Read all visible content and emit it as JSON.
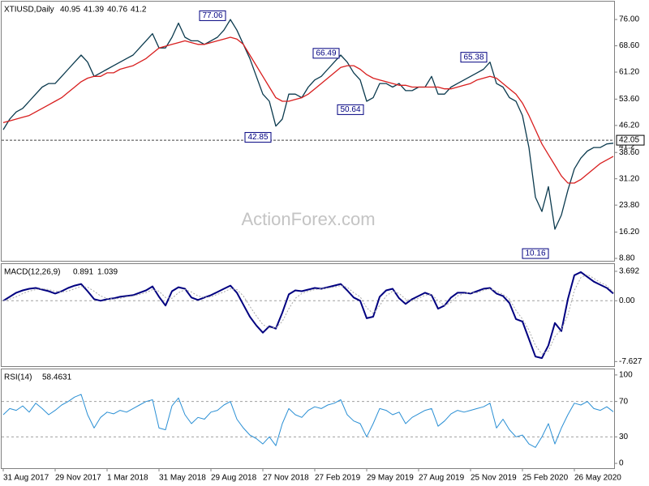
{
  "chart_data": [
    {
      "type": "line",
      "title": "XTIUSD,Daily",
      "ohlc": [
        40.95,
        41.39,
        40.76,
        41.2
      ],
      "watermark": "ActionForex.com",
      "series": [
        {
          "color": "#0b3a4e",
          "values": [
            45,
            48,
            50,
            51,
            53,
            55,
            57,
            58,
            58,
            60,
            62,
            64,
            66,
            64,
            60,
            61,
            62,
            63,
            64,
            65,
            66,
            68,
            70,
            72,
            68,
            68,
            71,
            75,
            71,
            70,
            70,
            69,
            70,
            71,
            73,
            76,
            73,
            69,
            65,
            60,
            55,
            53,
            46,
            48,
            55,
            55,
            54,
            57,
            59,
            60,
            62,
            64,
            66,
            64,
            61,
            59,
            53,
            54,
            58,
            58,
            57,
            58,
            56,
            56,
            57,
            57,
            60,
            55,
            55,
            57,
            58,
            59,
            60,
            61,
            62,
            64,
            58,
            57,
            54,
            53,
            49,
            40,
            26,
            22,
            29,
            17,
            21,
            28,
            34,
            37,
            39,
            40,
            40,
            41,
            41.2
          ]
        },
        {
          "color": "#d81e1e",
          "values": [
            47,
            47.5,
            48,
            48.5,
            49,
            50,
            51,
            52,
            53,
            54,
            55.5,
            57,
            58.5,
            59.5,
            60,
            60,
            61,
            61,
            62,
            62.5,
            63,
            64,
            65,
            66.5,
            68,
            68.5,
            69,
            69.5,
            70,
            69.5,
            69,
            69,
            69.5,
            70,
            70.5,
            71,
            70.5,
            69,
            66,
            63,
            60,
            57,
            54,
            53,
            53,
            53.5,
            54,
            55,
            56.5,
            58,
            59.5,
            61,
            62.5,
            63,
            63,
            62,
            60.5,
            59.5,
            59,
            58.5,
            58,
            57.5,
            57.5,
            57,
            57,
            57,
            57,
            57,
            56.5,
            56.5,
            57,
            57.5,
            58,
            59,
            59.5,
            60,
            59.5,
            58,
            56.5,
            55,
            52.5,
            49,
            45,
            41,
            38,
            35,
            32,
            30,
            30,
            31,
            32.5,
            34,
            35.5,
            36.5,
            37.5
          ]
        }
      ],
      "ylim": [
        8.35,
        80.8
      ],
      "yticks": [
        {
          "value": 76,
          "label": "76.00"
        },
        {
          "value": 68.6,
          "label": "68.60"
        },
        {
          "value": 61.2,
          "label": "61.20"
        },
        {
          "value": 53.6,
          "label": "53.60"
        },
        {
          "value": 46.2,
          "label": "46.20"
        },
        {
          "value": 38.6,
          "label": "38.60"
        },
        {
          "value": 31.2,
          "label": "31.20"
        },
        {
          "value": 23.8,
          "label": "23.80"
        },
        {
          "value": 16.2,
          "label": "16.20"
        },
        {
          "value": 8.8,
          "label": "8.80"
        }
      ],
      "level": 42.05,
      "annotations": [
        77.06,
        66.49,
        65.38,
        50.64,
        42.85,
        10.16
      ]
    },
    {
      "type": "line",
      "title": "MACD(12,26,9)",
      "header_values": [
        0.891,
        1.039
      ],
      "series": [
        {
          "color": "#000080",
          "width": 2,
          "values": [
            0.0,
            0.5,
            1.0,
            1.3,
            1.5,
            1.6,
            1.4,
            1.2,
            0.9,
            1.2,
            1.6,
            1.9,
            2.1,
            1.2,
            0.2,
            0.0,
            0.2,
            0.3,
            0.5,
            0.6,
            0.7,
            1.0,
            1.3,
            1.8,
            0.5,
            -0.6,
            1.2,
            1.7,
            1.5,
            0.4,
            0.1,
            0.4,
            0.7,
            1.1,
            1.5,
            1.9,
            1.0,
            -0.5,
            -2.0,
            -3.1,
            -4.0,
            -3.2,
            -3.5,
            -1.5,
            0.8,
            1.3,
            1.2,
            1.4,
            1.6,
            1.5,
            1.7,
            1.9,
            2.1,
            1.3,
            0.4,
            0.0,
            -2.2,
            -2.0,
            0.5,
            1.3,
            1.5,
            0.3,
            -0.4,
            0.2,
            0.6,
            1.0,
            0.7,
            -1.0,
            -0.6,
            0.4,
            1.0,
            1.0,
            0.9,
            1.2,
            1.5,
            1.6,
            0.9,
            0.6,
            -0.3,
            -2.3,
            -2.6,
            -4.8,
            -7.0,
            -7.2,
            -5.6,
            -2.8,
            -3.8,
            0.2,
            3.2,
            3.6,
            3.0,
            2.4,
            2.0,
            1.6,
            0.9
          ]
        },
        {
          "color": "#a8a8a8",
          "width": 1,
          "style": "dotted",
          "values": [
            0.0,
            0.2,
            0.5,
            0.9,
            1.2,
            1.4,
            1.5,
            1.4,
            1.2,
            1.1,
            1.2,
            1.5,
            1.8,
            1.7,
            1.2,
            0.6,
            0.3,
            0.2,
            0.3,
            0.5,
            0.6,
            0.8,
            1.0,
            1.4,
            1.2,
            0.4,
            0.3,
            1.0,
            1.4,
            1.1,
            0.6,
            0.4,
            0.5,
            0.8,
            1.1,
            1.5,
            1.4,
            0.6,
            -0.7,
            -1.9,
            -3.0,
            -3.4,
            -3.4,
            -2.6,
            -1.0,
            0.3,
            0.9,
            1.2,
            1.4,
            1.5,
            1.6,
            1.7,
            1.9,
            1.7,
            1.0,
            0.5,
            -0.9,
            -1.6,
            -0.6,
            0.6,
            1.2,
            0.9,
            0.2,
            0.0,
            0.3,
            0.7,
            0.8,
            0.0,
            -0.6,
            -0.2,
            0.6,
            0.9,
            1.0,
            1.0,
            1.3,
            1.5,
            1.2,
            0.8,
            0.2,
            -1.2,
            -2.3,
            -3.7,
            -5.6,
            -6.7,
            -6.3,
            -4.5,
            -3.6,
            -1.8,
            1.3,
            2.9,
            3.3,
            2.8,
            2.3,
            1.9,
            1.05
          ]
        }
      ],
      "ylim": [
        -8.1,
        4.5
      ],
      "yticks": [
        3.692,
        {
          "value": 0,
          "label": "0.00"
        },
        -7.627
      ],
      "levels": [
        0
      ]
    },
    {
      "type": "line",
      "title": "RSI(14)",
      "header_values": [
        58.4631
      ],
      "series": [
        {
          "color": "#2a8fd4",
          "width": 1,
          "values": [
            55,
            62,
            60,
            65,
            58,
            68,
            62,
            55,
            60,
            66,
            70,
            75,
            78,
            55,
            40,
            52,
            58,
            56,
            60,
            58,
            62,
            66,
            70,
            72,
            40,
            38,
            65,
            74,
            55,
            45,
            52,
            50,
            58,
            60,
            66,
            70,
            50,
            40,
            32,
            28,
            22,
            30,
            20,
            45,
            62,
            55,
            52,
            60,
            64,
            62,
            66,
            68,
            72,
            55,
            48,
            45,
            30,
            45,
            62,
            60,
            55,
            58,
            45,
            52,
            56,
            60,
            62,
            42,
            48,
            56,
            60,
            58,
            60,
            62,
            64,
            68,
            40,
            50,
            38,
            30,
            32,
            22,
            18,
            30,
            45,
            22,
            40,
            55,
            68,
            66,
            70,
            62,
            60,
            64,
            58.4631
          ]
        }
      ],
      "ylim": [
        -4.5,
        105.4
      ],
      "yticks": [
        100,
        70,
        30,
        0
      ],
      "levels": [
        70,
        30
      ],
      "categories": [
        "31 Aug 2017",
        null,
        null,
        null,
        null,
        null,
        null,
        null,
        "29 Nov 2017",
        null,
        null,
        null,
        null,
        null,
        null,
        null,
        "1 Mar 2018",
        null,
        null,
        null,
        null,
        null,
        null,
        null,
        "31 May 2018",
        null,
        null,
        null,
        null,
        null,
        null,
        null,
        "29 Aug 2018",
        null,
        null,
        null,
        null,
        null,
        null,
        null,
        "27 Nov 2018",
        null,
        null,
        null,
        null,
        null,
        null,
        null,
        "27 Feb 2019",
        null,
        null,
        null,
        null,
        null,
        null,
        null,
        "29 May 2019",
        null,
        null,
        null,
        null,
        null,
        null,
        null,
        "27 Aug 2019",
        null,
        null,
        null,
        null,
        null,
        null,
        null,
        "25 Nov 2019",
        null,
        null,
        null,
        null,
        null,
        null,
        null,
        "25 Feb 2020",
        null,
        null,
        null,
        null,
        null,
        null,
        null,
        "26 May 2020",
        null,
        null,
        null,
        null,
        null,
        null
      ]
    }
  ]
}
